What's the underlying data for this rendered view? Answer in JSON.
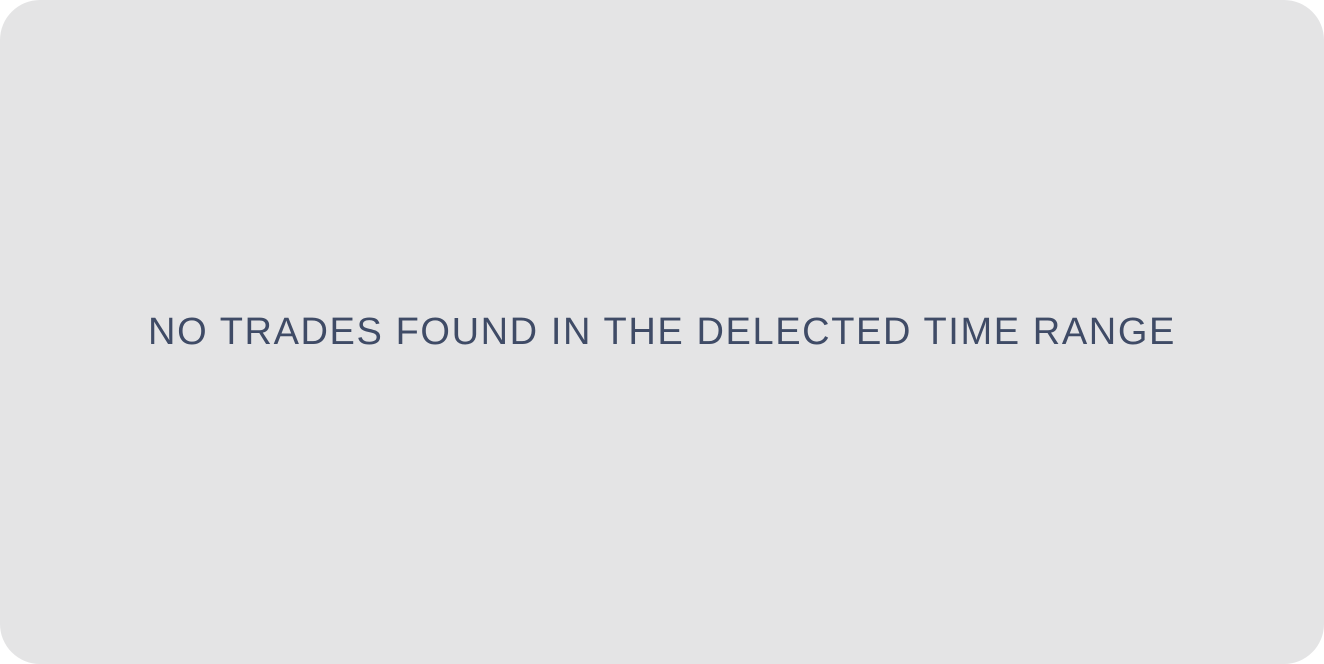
{
  "empty_state": {
    "message": "NO TRADES FOUND IN THE DELECTED TIME RANGE"
  },
  "colors": {
    "panel_background": "#e4e4e5",
    "message_text": "#3f4b66"
  }
}
